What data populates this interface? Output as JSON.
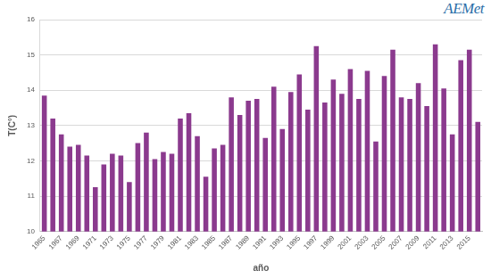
{
  "chart_data": {
    "type": "bar",
    "annotations": [
      "AEMet"
    ],
    "x_label": "año",
    "y_label": "T(C°)",
    "categories": [
      "1965",
      null,
      "1967",
      null,
      "1969",
      null,
      "1971",
      null,
      "1973",
      null,
      "1975",
      null,
      "1977",
      null,
      "1979",
      null,
      "1981",
      null,
      "1983",
      null,
      "1985",
      null,
      "1987",
      null,
      "1989",
      null,
      "1991",
      null,
      "1993",
      null,
      "1995",
      null,
      "1997",
      null,
      "1999",
      null,
      "2001",
      null,
      "2003",
      null,
      "2005",
      null,
      "2007",
      null,
      "2009",
      null,
      "2011",
      null,
      "2013",
      null,
      "2015",
      null
    ],
    "values": [
      13.85,
      13.2,
      12.75,
      12.4,
      12.45,
      12.15,
      11.25,
      11.9,
      12.2,
      12.15,
      11.4,
      12.5,
      12.8,
      12.05,
      12.25,
      12.2,
      13.2,
      13.35,
      12.7,
      11.55,
      12.35,
      12.45,
      13.8,
      13.3,
      13.7,
      13.75,
      12.65,
      14.1,
      12.9,
      13.95,
      14.45,
      13.45,
      15.25,
      13.65,
      14.3,
      13.9,
      14.6,
      13.75,
      14.55,
      12.55,
      14.4,
      15.15,
      13.8,
      13.75,
      14.2,
      13.55,
      15.3,
      14.05,
      12.75,
      14.85,
      15.15,
      13.1
    ],
    "color": "#8b3a8e",
    "ylim": [
      10,
      16
    ],
    "yticks": [
      10,
      11,
      12,
      13,
      14,
      15,
      16
    ],
    "grid": true
  }
}
